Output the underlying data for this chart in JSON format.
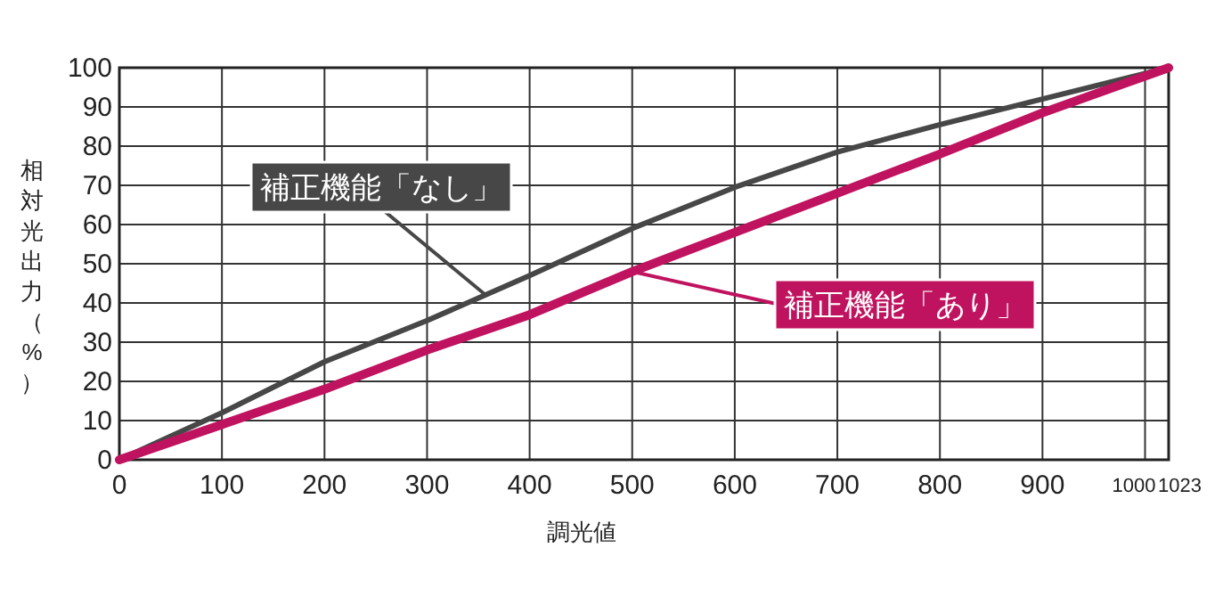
{
  "chart_data": {
    "type": "line",
    "xlabel": "調光値",
    "ylabel": "相対光出力（%）",
    "x": [
      0,
      100,
      200,
      300,
      400,
      500,
      600,
      700,
      800,
      900,
      1023
    ],
    "series": [
      {
        "name": "補正機能「なし」",
        "color": "#474747",
        "values": [
          0,
          12,
          25,
          35.5,
          47,
          59,
          69.5,
          78.5,
          85.5,
          92,
          100
        ]
      },
      {
        "name": "補正機能「あり」",
        "color": "#c0135f",
        "values": [
          0,
          9,
          18,
          28,
          37,
          48,
          58,
          68,
          78,
          88.5,
          100
        ]
      }
    ],
    "xlim": [
      0,
      1023
    ],
    "xticks": [
      0,
      100,
      200,
      300,
      400,
      500,
      600,
      700,
      800,
      900,
      1000,
      1023
    ],
    "ylim": [
      0,
      100
    ],
    "yticks": [
      0,
      10,
      20,
      30,
      40,
      50,
      60,
      70,
      80,
      90,
      100
    ],
    "grid": true,
    "legend": "right",
    "marker": "none",
    "line_style": "solid"
  }
}
